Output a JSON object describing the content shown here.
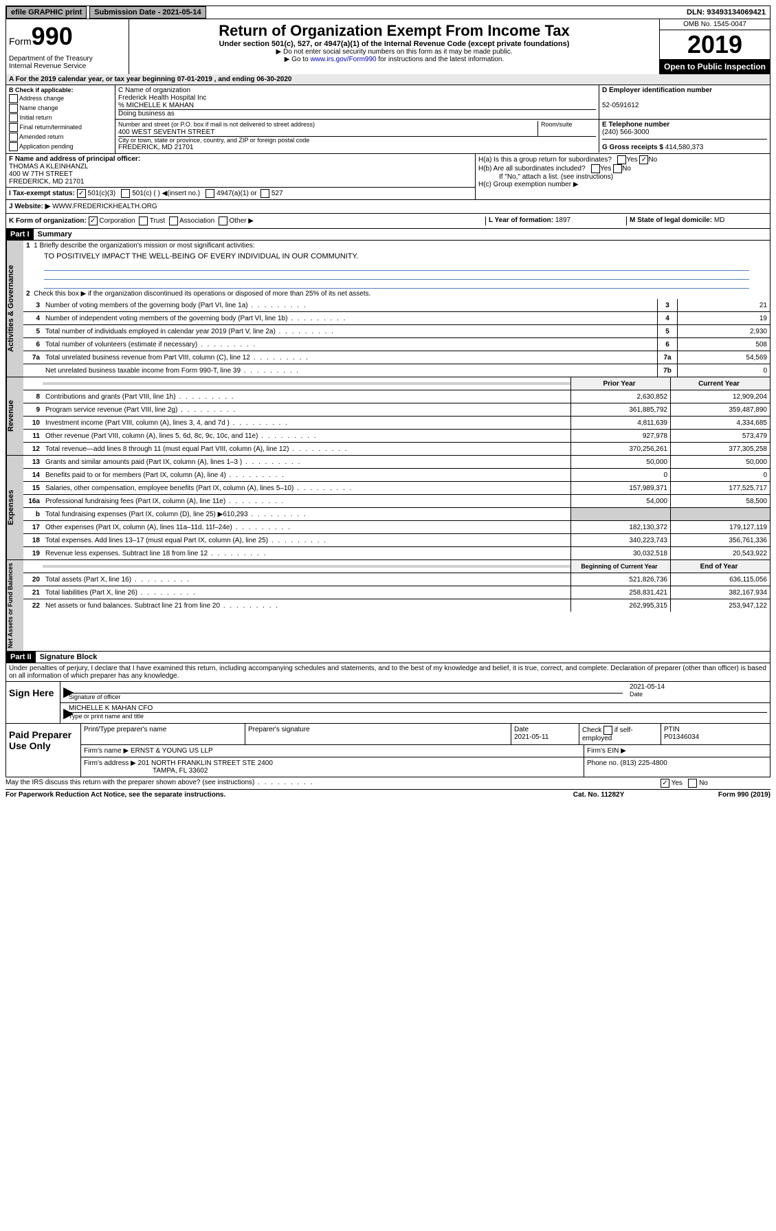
{
  "top": {
    "efile": "efile GRAPHIC print",
    "submission_label": "Submission Date - 2021-05-14",
    "dln": "DLN: 93493134069421"
  },
  "header": {
    "form_prefix": "Form",
    "form_number": "990",
    "dept": "Department of the Treasury\nInternal Revenue Service",
    "title": "Return of Organization Exempt From Income Tax",
    "subtitle": "Under section 501(c), 527, or 4947(a)(1) of the Internal Revenue Code (except private foundations)",
    "note1": "▶ Do not enter social security numbers on this form as it may be made public.",
    "note2_pre": "▶ Go to ",
    "note2_link": "www.irs.gov/Form990",
    "note2_post": " for instructions and the latest information.",
    "omb": "OMB No. 1545-0047",
    "year": "2019",
    "open": "Open to Public Inspection"
  },
  "a_line": "A For the 2019 calendar year, or tax year beginning 07-01-2019     , and ending 06-30-2020",
  "b": {
    "label": "B Check if applicable:",
    "opts": [
      "Address change",
      "Name change",
      "Initial return",
      "Final return/terminated",
      "Amended return",
      "Application pending"
    ]
  },
  "c": {
    "label": "C Name of organization",
    "name": "Frederick Health Hospital Inc",
    "care_of": "% MICHELLE K MAHAN",
    "dba_label": "Doing business as",
    "addr_label": "Number and street (or P.O. box if mail is not delivered to street address)",
    "room_label": "Room/suite",
    "addr": "400 WEST SEVENTH STREET",
    "city_label": "City or town, state or province, country, and ZIP or foreign postal code",
    "city": "FREDERICK, MD  21701"
  },
  "d": {
    "label": "D Employer identification number",
    "ein": "52-0591612"
  },
  "e": {
    "label": "E Telephone number",
    "phone": "(240) 566-3000"
  },
  "g": {
    "label": "G Gross receipts $",
    "amount": "414,580,373"
  },
  "f": {
    "label": "F  Name and address of principal officer:",
    "name": "THOMAS A KLEINHANZL",
    "addr1": "400 W 7TH STREET",
    "addr2": "FREDERICK, MD  21701"
  },
  "h": {
    "a_label": "H(a)  Is this a group return for subordinates?",
    "b_label": "H(b)  Are all subordinates included?",
    "note": "If \"No,\" attach a list. (see instructions)",
    "c_label": "H(c)  Group exemption number ▶"
  },
  "i": {
    "label": "I   Tax-exempt status:",
    "opt1": "501(c)(3)",
    "opt2": "501(c) (  ) ◀(insert no.)",
    "opt3": "4947(a)(1) or",
    "opt4": "527"
  },
  "j": {
    "label": "J   Website: ▶",
    "url": "WWW.FREDERICKHEALTH.ORG"
  },
  "k": {
    "label": "K Form of organization:",
    "opts": [
      "Corporation",
      "Trust",
      "Association",
      "Other ▶"
    ]
  },
  "l": {
    "label": "L Year of formation:",
    "value": "1897"
  },
  "m": {
    "label": "M State of legal domicile:",
    "value": "MD"
  },
  "part1": {
    "header": "Part I",
    "title": "Summary",
    "vtabs": [
      "Activities & Governance",
      "Revenue",
      "Expenses",
      "Net Assets or Fund Balances"
    ]
  },
  "lines_gov": {
    "l1_label": "1  Briefly describe the organization's mission or most significant activities:",
    "l1_text": "TO POSITIVELY IMPACT THE WELL-BEING OF EVERY INDIVIDUAL IN OUR COMMUNITY.",
    "l2_label": "Check this box ▶         if the organization discontinued its operations or disposed of more than 25% of its net assets.",
    "l3": {
      "n": "3",
      "label": "Number of voting members of the governing body (Part VI, line 1a)",
      "box": "3",
      "val": "21"
    },
    "l4": {
      "n": "4",
      "label": "Number of independent voting members of the governing body (Part VI, line 1b)",
      "box": "4",
      "val": "19"
    },
    "l5": {
      "n": "5",
      "label": "Total number of individuals employed in calendar year 2019 (Part V, line 2a)",
      "box": "5",
      "val": "2,930"
    },
    "l6": {
      "n": "6",
      "label": "Total number of volunteers (estimate if necessary)",
      "box": "6",
      "val": "508"
    },
    "l7a": {
      "n": "7a",
      "label": "Total unrelated business revenue from Part VIII, column (C), line 12",
      "box": "7a",
      "val": "54,569"
    },
    "l7b": {
      "n": "",
      "label": "Net unrelated business taxable income from Form 990-T, line 39",
      "box": "7b",
      "val": "0"
    }
  },
  "col_headers": {
    "prior": "Prior Year",
    "curr": "Current Year"
  },
  "lines_rev": [
    {
      "n": "8",
      "label": "Contributions and grants (Part VIII, line 1h)",
      "prior": "2,630,852",
      "curr": "12,909,204"
    },
    {
      "n": "9",
      "label": "Program service revenue (Part VIII, line 2g)",
      "prior": "361,885,792",
      "curr": "359,487,890"
    },
    {
      "n": "10",
      "label": "Investment income (Part VIII, column (A), lines 3, 4, and 7d )",
      "prior": "4,811,639",
      "curr": "4,334,685"
    },
    {
      "n": "11",
      "label": "Other revenue (Part VIII, column (A), lines 5, 6d, 8c, 9c, 10c, and 11e)",
      "prior": "927,978",
      "curr": "573,479"
    },
    {
      "n": "12",
      "label": "Total revenue—add lines 8 through 11 (must equal Part VIII, column (A), line 12)",
      "prior": "370,256,261",
      "curr": "377,305,258"
    }
  ],
  "lines_exp": [
    {
      "n": "13",
      "label": "Grants and similar amounts paid (Part IX, column (A), lines 1–3 )",
      "prior": "50,000",
      "curr": "50,000"
    },
    {
      "n": "14",
      "label": "Benefits paid to or for members (Part IX, column (A), line 4)",
      "prior": "0",
      "curr": "0"
    },
    {
      "n": "15",
      "label": "Salaries, other compensation, employee benefits (Part IX, column (A), lines 5–10)",
      "prior": "157,989,371",
      "curr": "177,525,717"
    },
    {
      "n": "16a",
      "label": "Professional fundraising fees (Part IX, column (A), line 11e)",
      "prior": "54,000",
      "curr": "58,500"
    },
    {
      "n": "b",
      "label": "Total fundraising expenses (Part IX, column (D), line 25) ▶610,293",
      "prior": "",
      "curr": "",
      "shaded": true
    },
    {
      "n": "17",
      "label": "Other expenses (Part IX, column (A), lines 11a–11d, 11f–24e)",
      "prior": "182,130,372",
      "curr": "179,127,119"
    },
    {
      "n": "18",
      "label": "Total expenses. Add lines 13–17 (must equal Part IX, column (A), line 25)",
      "prior": "340,223,743",
      "curr": "356,761,336"
    },
    {
      "n": "19",
      "label": "Revenue less expenses. Subtract line 18 from line 12",
      "prior": "30,032,518",
      "curr": "20,543,922"
    }
  ],
  "col_headers2": {
    "prior": "Beginning of Current Year",
    "curr": "End of Year"
  },
  "lines_net": [
    {
      "n": "20",
      "label": "Total assets (Part X, line 16)",
      "prior": "521,826,736",
      "curr": "636,115,056"
    },
    {
      "n": "21",
      "label": "Total liabilities (Part X, line 26)",
      "prior": "258,831,421",
      "curr": "382,167,934"
    },
    {
      "n": "22",
      "label": "Net assets or fund balances. Subtract line 21 from line 20",
      "prior": "262,995,315",
      "curr": "253,947,122"
    }
  ],
  "part2": {
    "header": "Part II",
    "title": "Signature Block",
    "declare": "Under penalties of perjury, I declare that I have examined this return, including accompanying schedules and statements, and to the best of my knowledge and belief, it is true, correct, and complete. Declaration of preparer (other than officer) is based on all information of which preparer has any knowledge."
  },
  "sign": {
    "left": "Sign Here",
    "sig_label": "Signature of officer",
    "date_label": "Date",
    "date": "2021-05-14",
    "name": "MICHELLE K MAHAN  CFO",
    "name_label": "Type or print name and title"
  },
  "paid": {
    "left": "Paid Preparer Use Only",
    "h1": "Print/Type preparer's name",
    "h2": "Preparer's signature",
    "h3": "Date",
    "h4_pre": "Check",
    "h4_post": "if self-employed",
    "h5": "PTIN",
    "date": "2021-05-11",
    "ptin": "P01346034",
    "firm_label": "Firm's name     ▶",
    "firm": "ERNST & YOUNG US LLP",
    "ein_label": "Firm's EIN ▶",
    "addr_label": "Firm's address ▶",
    "addr1": "201 NORTH FRANKLIN STREET STE 2400",
    "addr2": "TAMPA, FL  33602",
    "phone_label": "Phone no.",
    "phone": "(813) 225-4800"
  },
  "discuss": {
    "label": "May the IRS discuss this return with the preparer shown above? (see instructions)",
    "yes": "Yes",
    "no": "No"
  },
  "footer": {
    "left": "For Paperwork Reduction Act Notice, see the separate instructions.",
    "mid": "Cat. No. 11282Y",
    "right": "Form 990 (2019)"
  }
}
